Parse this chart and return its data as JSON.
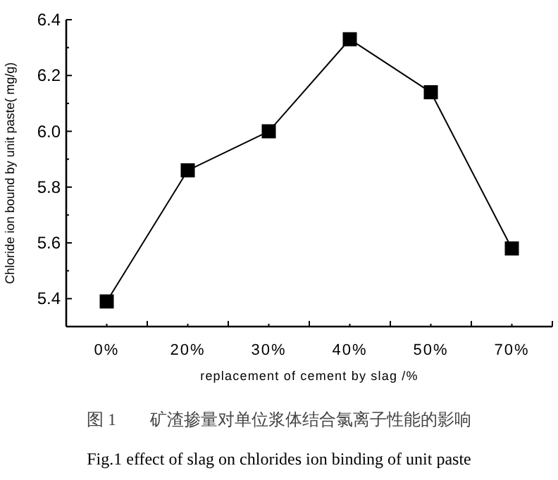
{
  "chart_data": {
    "type": "line",
    "categories": [
      "0%",
      "20%",
      "30%",
      "40%",
      "50%",
      "70%"
    ],
    "series": [
      {
        "color": "#000000",
        "values": [
          5.39,
          5.86,
          6.0,
          6.33,
          6.14,
          5.58
        ]
      }
    ],
    "marker": "square",
    "line_style": "solid",
    "xlabel": "replacement of cement by slag /%",
    "ylabel": "Chloride ion bound by unit paste( mg/g)",
    "ylim": [
      5.3,
      6.4
    ],
    "yticks": [
      5.4,
      5.6,
      5.8,
      {
        "value": 6.0,
        "label": "6.0"
      },
      6.2,
      6.4
    ],
    "grid": false,
    "annotations": [
      "图 1　　矿渣掺量对单位浆体结合氯离子性能的影响",
      "Fig.1 effect of slag on chlorides ion binding of unit paste"
    ]
  }
}
